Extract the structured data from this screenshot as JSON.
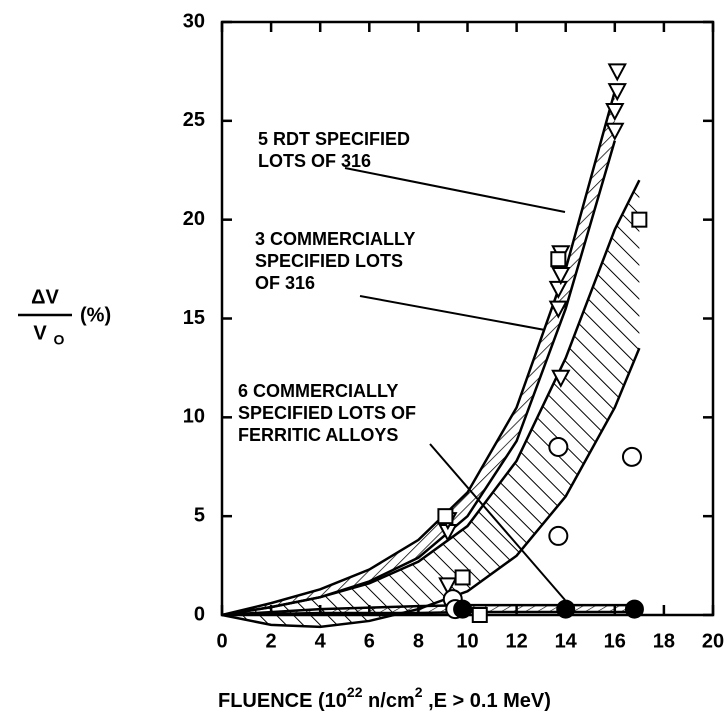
{
  "chart_data": {
    "type": "scatter",
    "x_label": {
      "text": "FLUENCE (10",
      "sup1": "22",
      "mid": " n/cm",
      "sup2": "2",
      "end": " ,E > 0.1 MeV)"
    },
    "y_label": {
      "numerator": "ΔV",
      "denominator": "V",
      "subscript": "O",
      "unit": "(%)"
    },
    "xlim": [
      0,
      20
    ],
    "xticks": [
      0,
      2,
      4,
      6,
      8,
      10,
      12,
      14,
      16,
      18,
      20
    ],
    "ylim": [
      0,
      30
    ],
    "yticks": [
      0,
      5,
      10,
      15,
      20,
      25,
      30
    ],
    "bands": [
      {
        "hatch": "fwd",
        "x": [
          0,
          2,
          4,
          6,
          8,
          10,
          12,
          14,
          16
        ],
        "upper": [
          0,
          0.6,
          1.3,
          2.3,
          3.8,
          6.2,
          10.5,
          17.5,
          26.5
        ],
        "lower": [
          0,
          0.4,
          0.9,
          1.7,
          2.9,
          5.0,
          8.8,
          15.5,
          24.0
        ]
      },
      {
        "hatch": "back",
        "x": [
          0,
          2,
          4,
          6,
          8,
          10,
          12,
          14,
          16,
          17
        ],
        "upper": [
          0,
          0.4,
          0.9,
          1.6,
          2.7,
          4.5,
          7.8,
          13.0,
          19.5,
          22.0
        ],
        "lower": [
          0,
          -0.5,
          -0.6,
          -0.3,
          0.3,
          1.2,
          3.0,
          6.0,
          10.5,
          13.5
        ]
      },
      {
        "hatch": "flat",
        "x": [
          0,
          4,
          8,
          10,
          12,
          14,
          17
        ],
        "upper": [
          0,
          0.3,
          0.45,
          0.5,
          0.5,
          0.5,
          0.5
        ],
        "lower": [
          0,
          0.1,
          0.1,
          0.15,
          0.15,
          0.15,
          0.15
        ]
      }
    ],
    "series": [
      {
        "marker": "triangle",
        "color": "#000000",
        "x": [
          9.2,
          9.2,
          13.7,
          13.7,
          13.8,
          13.8,
          16.0,
          16.0,
          16.1,
          16.1,
          13.8,
          9.2
        ],
        "values": [
          4.2,
          4.8,
          15.5,
          16.5,
          17.2,
          18.3,
          24.5,
          25.5,
          26.5,
          27.5,
          12.0,
          1.5
        ]
      },
      {
        "marker": "square",
        "color": "#000000",
        "x": [
          9.1,
          9.8,
          10.5,
          13.7,
          17.0
        ],
        "values": [
          5.0,
          1.9,
          0.0,
          18.0,
          20.0
        ]
      },
      {
        "marker": "circle",
        "color": "#000000",
        "x": [
          9.4,
          13.7,
          13.7,
          16.7,
          9.5
        ],
        "values": [
          0.8,
          8.5,
          4.0,
          8.0,
          0.3
        ]
      },
      {
        "marker": "dot",
        "color": "#000000",
        "x": [
          9.8,
          14.0,
          16.8
        ],
        "values": [
          0.3,
          0.3,
          0.3
        ]
      }
    ],
    "annotations": [
      [
        "5 RDT SPECIFIED",
        "LOTS OF 316"
      ],
      [
        "3 COMMERCIALLY",
        "SPECIFIED LOTS",
        "OF 316"
      ],
      [
        "6 COMMERCIALLY",
        "SPECIFIED LOTS OF",
        "FERRITIC ALLOYS"
      ]
    ]
  }
}
